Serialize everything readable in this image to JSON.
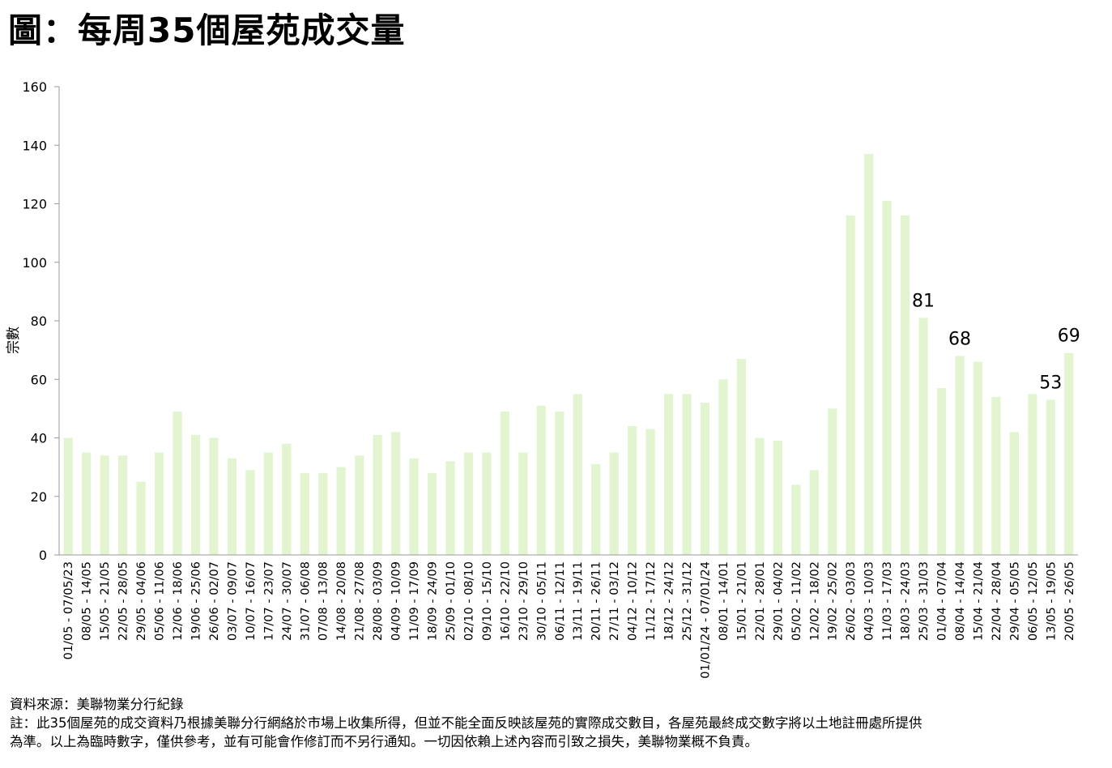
{
  "title": "圖：每周35個屋苑成交量",
  "chart_data": {
    "type": "bar",
    "ylabel": "宗數",
    "ylim": [
      0,
      160
    ],
    "yticks": [
      0,
      20,
      40,
      60,
      80,
      100,
      120,
      140,
      160
    ],
    "bar_color": "#e2f5d0",
    "categories": [
      "01/05 - 07/05/23",
      "08/05 - 14/05",
      "15/05 - 21/05",
      "22/05 - 28/05",
      "29/05 - 04/06",
      "05/06 - 11/06",
      "12/06 - 18/06",
      "19/06 - 25/06",
      "26/06 - 02/07",
      "03/07 - 09/07",
      "10/07 - 16/07",
      "17/07 - 23/07",
      "24/07 - 30/07",
      "31/07 - 06/08",
      "07/08 - 13/08",
      "14/08 - 20/08",
      "21/08 - 27/08",
      "28/08 - 03/09",
      "04/09 - 10/09",
      "11/09 - 17/09",
      "18/09 - 24/09",
      "25/09 - 01/10",
      "02/10 - 08/10",
      "09/10 - 15/10",
      "16/10 - 22/10",
      "23/10 - 29/10",
      "30/10 - 05/11",
      "06/11 - 12/11",
      "13/11 - 19/11",
      "20/11 - 26/11",
      "27/11 - 03/12",
      "04/12 - 10/12",
      "11/12 - 17/12",
      "18/12 - 24/12",
      "25/12 - 31/12",
      "01/01/24 - 07/01/24",
      "08/01 - 14/01",
      "15/01 - 21/01",
      "22/01 - 28/01",
      "29/01 - 04/02",
      "05/02 - 11/02",
      "12/02 - 18/02",
      "19/02 - 25/02",
      "26/02 - 03/03",
      "04/03 - 10/03",
      "11/03 - 17/03",
      "18/03 - 24/03",
      "25/03 - 31/03",
      "01/04 - 07/04",
      "08/04 - 14/04",
      "15/04 - 21/04",
      "22/04 - 28/04",
      "29/04 - 05/05",
      "06/05 - 12/05",
      "13/05 - 19/05",
      "20/05 - 26/05"
    ],
    "values": [
      40,
      35,
      34,
      34,
      25,
      35,
      49,
      41,
      40,
      33,
      29,
      35,
      38,
      28,
      28,
      30,
      34,
      41,
      42,
      33,
      28,
      32,
      35,
      35,
      49,
      35,
      51,
      49,
      55,
      31,
      35,
      44,
      43,
      55,
      55,
      52,
      60,
      67,
      40,
      39,
      24,
      29,
      50,
      116,
      137,
      121,
      116,
      81,
      57,
      68,
      66,
      54,
      42,
      55,
      53,
      69
    ],
    "data_labels": [
      {
        "index": 47,
        "text": "81"
      },
      {
        "index": 49,
        "text": "68"
      },
      {
        "index": 54,
        "text": "53"
      },
      {
        "index": 55,
        "text": "69"
      }
    ]
  },
  "footer": {
    "source": "資料來源：美聯物業分行紀錄",
    "note_line1": "註：此35個屋苑的成交資料乃根據美聯分行網絡於市場上收集所得，但並不能全面反映該屋苑的實際成交數目，各屋苑最終成交數字將以土地註冊處所提供",
    "note_line2": "為準。以上為臨時數字，僅供參考，並有可能會作修訂而不另行通知。一切因依賴上述內容而引致之損失，美聯物業概不負責。"
  }
}
